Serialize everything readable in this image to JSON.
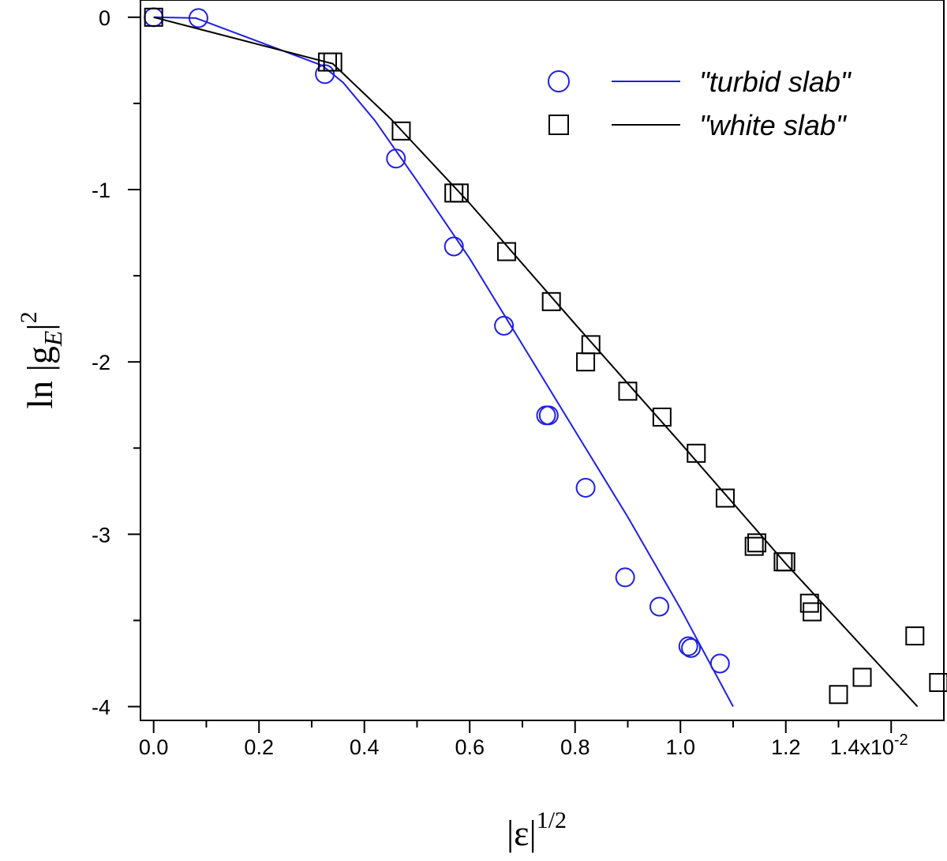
{
  "chart_data": {
    "type": "scatter",
    "title": "",
    "xlabel": {
      "base": "|ε|",
      "exponent": "1/2"
    },
    "ylabel": {
      "prefix": "ln |g",
      "subscript": "E",
      "suffix": "|",
      "exponent": "2"
    },
    "xlim": [
      -0.025,
      1.5
    ],
    "ylim": [
      -4.08,
      0.1
    ],
    "x_ticks": [
      {
        "value": 0.0,
        "label": "0.0"
      },
      {
        "value": 0.2,
        "label": "0.2"
      },
      {
        "value": 0.4,
        "label": "0.4"
      },
      {
        "value": 0.6,
        "label": "0.6"
      },
      {
        "value": 0.8,
        "label": "0.8"
      },
      {
        "value": 1.0,
        "label": "1.0"
      },
      {
        "value": 1.2,
        "label": "1.2"
      },
      {
        "value": 1.4,
        "label": "1.4x10",
        "superscript": "-2"
      }
    ],
    "x_minor_ticks": [
      0.1,
      0.3,
      0.5,
      0.7,
      0.9,
      1.1,
      1.3
    ],
    "y_ticks": [
      {
        "value": 0,
        "label": "0"
      },
      {
        "value": -1,
        "label": "-1"
      },
      {
        "value": -2,
        "label": "-2"
      },
      {
        "value": -3,
        "label": "-3"
      },
      {
        "value": -4,
        "label": "-4"
      }
    ],
    "y_minor_ticks": [
      -0.5,
      -1.5,
      -2.5,
      -3.5
    ],
    "grid": false,
    "legend_position": "top-right",
    "series": [
      {
        "name": "\"turbid slab\"",
        "color": "#1f1fe6",
        "marker": "circle",
        "points": [
          [
            0.0,
            0.0
          ],
          [
            0.085,
            -0.005
          ],
          [
            0.325,
            -0.33
          ],
          [
            0.46,
            -0.82
          ],
          [
            0.57,
            -1.33
          ],
          [
            0.665,
            -1.79
          ],
          [
            0.745,
            -2.31
          ],
          [
            0.75,
            -2.31
          ],
          [
            0.82,
            -2.73
          ],
          [
            0.895,
            -3.25
          ],
          [
            0.96,
            -3.42
          ],
          [
            1.015,
            -3.65
          ],
          [
            1.02,
            -3.66
          ],
          [
            1.075,
            -3.75
          ]
        ],
        "fit_line": [
          [
            0.0,
            0.0
          ],
          [
            0.08,
            -0.005
          ],
          [
            0.32,
            -0.28
          ],
          [
            0.36,
            -0.38
          ],
          [
            0.42,
            -0.6
          ],
          [
            0.5,
            -0.95
          ],
          [
            0.6,
            -1.4
          ],
          [
            0.7,
            -1.9
          ],
          [
            0.8,
            -2.4
          ],
          [
            0.9,
            -2.9
          ],
          [
            1.0,
            -3.43
          ],
          [
            1.1,
            -4.0
          ]
        ]
      },
      {
        "name": "\"white slab\"",
        "color": "#000000",
        "marker": "square",
        "points": [
          [
            0.0,
            0.0
          ],
          [
            0.33,
            -0.26
          ],
          [
            0.34,
            -0.26
          ],
          [
            0.47,
            -0.66
          ],
          [
            0.57,
            -1.02
          ],
          [
            0.58,
            -1.02
          ],
          [
            0.67,
            -1.36
          ],
          [
            0.755,
            -1.65
          ],
          [
            0.82,
            -2.0
          ],
          [
            0.83,
            -1.9
          ],
          [
            0.9,
            -2.17
          ],
          [
            0.965,
            -2.32
          ],
          [
            1.03,
            -2.53
          ],
          [
            1.085,
            -2.79
          ],
          [
            1.14,
            -3.07
          ],
          [
            1.145,
            -3.05
          ],
          [
            1.195,
            -3.16
          ],
          [
            1.2,
            -3.16
          ],
          [
            1.245,
            -3.4
          ],
          [
            1.25,
            -3.45
          ],
          [
            1.3,
            -3.93
          ],
          [
            1.345,
            -3.83
          ],
          [
            1.445,
            -3.59
          ],
          [
            1.49,
            -3.86
          ]
        ],
        "fit_line": [
          [
            0.0,
            0.0
          ],
          [
            0.34,
            -0.27
          ],
          [
            0.45,
            -0.59
          ],
          [
            0.6,
            -1.08
          ],
          [
            0.8,
            -1.78
          ],
          [
            1.0,
            -2.47
          ],
          [
            1.2,
            -3.17
          ],
          [
            1.45,
            -4.0
          ]
        ]
      }
    ]
  }
}
